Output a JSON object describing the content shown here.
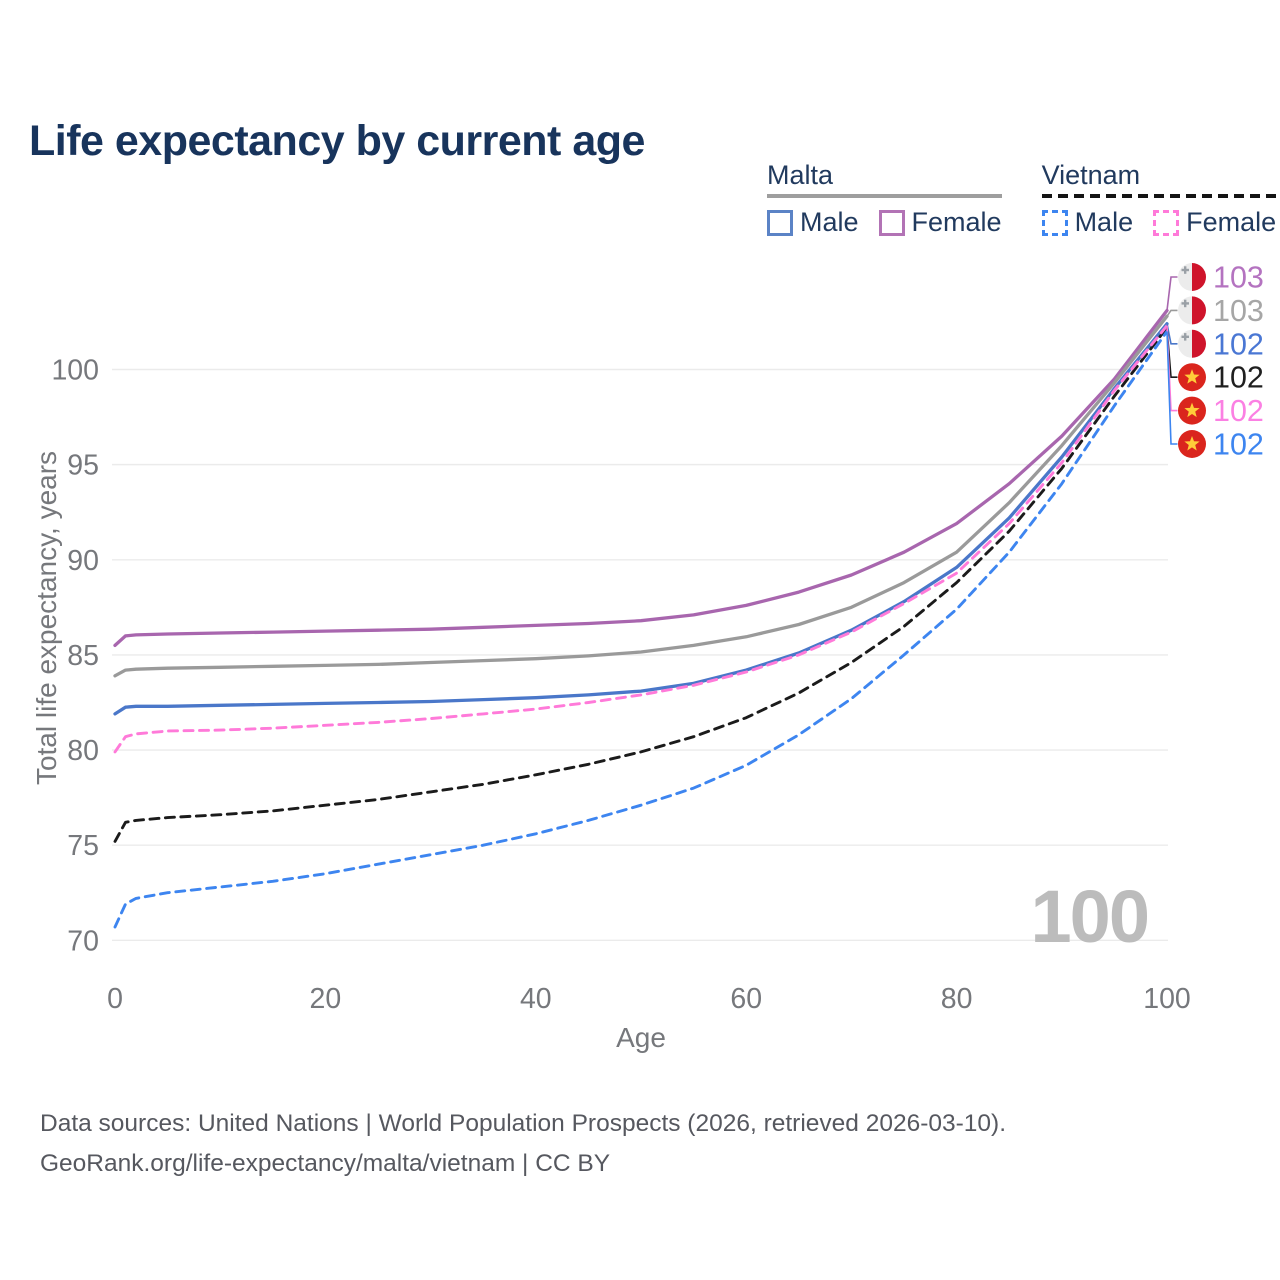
{
  "title": "Life expectancy by current age",
  "legend": {
    "groups": [
      {
        "title": "Malta",
        "style": "solid",
        "underline_color": "#9e9e9e",
        "items": [
          {
            "label": "Male",
            "color": "#5b83c6"
          },
          {
            "label": "Female",
            "color": "#b273b5"
          }
        ]
      },
      {
        "title": "Vietnam",
        "style": "dashed",
        "underline_color": "#141414",
        "items": [
          {
            "label": "Male",
            "color": "#3d85f0"
          },
          {
            "label": "Female",
            "color": "#ff7ad9"
          }
        ]
      }
    ]
  },
  "footer": {
    "line1": "Data sources: United Nations | World Population Prospects (2026, retrieved 2026-03-10).",
    "line2": "GeoRank.org/life-expectancy/malta/vietnam | CC BY"
  },
  "chart_data": {
    "type": "line",
    "title": "Life expectancy by current age",
    "xlabel": "Age",
    "ylabel": "Total life expectancy, years",
    "xlim": [
      0,
      100
    ],
    "ylim": [
      69.5,
      104
    ],
    "x_ticks": [
      0,
      20,
      40,
      60,
      80,
      100
    ],
    "y_ticks": [
      70,
      75,
      80,
      85,
      90,
      95,
      100
    ],
    "grid": true,
    "legend_position": "top-right",
    "watermark_age_counter": "100",
    "axis_color": "#76787c",
    "grid_color": "#ebebeb",
    "x": [
      0,
      1,
      2,
      5,
      10,
      15,
      20,
      25,
      30,
      35,
      40,
      45,
      50,
      55,
      60,
      65,
      70,
      75,
      80,
      85,
      90,
      95,
      100
    ],
    "series": [
      {
        "name": "malta-female",
        "country": "Malta",
        "sex": "Female",
        "color": "#a866ae",
        "dash": "solid",
        "flag": "malta",
        "end_label": "103",
        "end_label_color": "#b473c0",
        "values": [
          85.5,
          86.0,
          86.05,
          86.1,
          86.15,
          86.2,
          86.25,
          86.3,
          86.35,
          86.45,
          86.55,
          86.65,
          86.8,
          87.1,
          87.6,
          88.3,
          89.2,
          90.4,
          91.9,
          94.0,
          96.5,
          99.5,
          103.1
        ]
      },
      {
        "name": "malta-total",
        "country": "Malta",
        "sex": "All",
        "color": "#9a9a9a",
        "dash": "solid",
        "flag": "malta",
        "end_label": "103",
        "end_label_color": "#a6a6a6",
        "values": [
          83.9,
          84.2,
          84.25,
          84.3,
          84.35,
          84.4,
          84.45,
          84.5,
          84.6,
          84.7,
          84.8,
          84.95,
          85.15,
          85.5,
          85.95,
          86.6,
          87.5,
          88.8,
          90.4,
          93.0,
          96.0,
          99.3,
          102.8
        ]
      },
      {
        "name": "malta-male",
        "country": "Malta",
        "sex": "Male",
        "color": "#4a77c9",
        "dash": "solid",
        "flag": "malta",
        "end_label": "102",
        "end_label_color": "#4a77d4",
        "values": [
          81.9,
          82.25,
          82.3,
          82.3,
          82.35,
          82.4,
          82.45,
          82.5,
          82.55,
          82.65,
          82.75,
          82.9,
          83.1,
          83.5,
          84.2,
          85.1,
          86.3,
          87.8,
          89.6,
          92.2,
          95.4,
          99.0,
          102.4
        ]
      },
      {
        "name": "vietnam-total",
        "country": "Vietnam",
        "sex": "All",
        "color": "#1b1b1b",
        "dash": "dashed",
        "flag": "vietnam",
        "end_label": "102",
        "end_label_color": "#1f1f1f",
        "values": [
          75.2,
          76.2,
          76.3,
          76.45,
          76.6,
          76.8,
          77.1,
          77.4,
          77.8,
          78.2,
          78.7,
          79.25,
          79.9,
          80.7,
          81.7,
          83.0,
          84.6,
          86.5,
          88.8,
          91.5,
          94.8,
          98.6,
          102.2
        ]
      },
      {
        "name": "vietnam-female",
        "country": "Vietnam",
        "sex": "Female",
        "color": "#ff7ad9",
        "dash": "dashed",
        "flag": "vietnam",
        "end_label": "102",
        "end_label_color": "#fb80e3",
        "values": [
          79.9,
          80.7,
          80.85,
          81.0,
          81.05,
          81.15,
          81.3,
          81.45,
          81.65,
          81.9,
          82.15,
          82.5,
          82.9,
          83.4,
          84.1,
          85.0,
          86.2,
          87.7,
          89.3,
          91.9,
          95.1,
          98.9,
          102.3
        ]
      },
      {
        "name": "vietnam-male",
        "country": "Vietnam",
        "sex": "Male",
        "color": "#3d85f0",
        "dash": "dashed",
        "flag": "vietnam",
        "end_label": "102",
        "end_label_color": "#3d85f0",
        "values": [
          70.7,
          71.9,
          72.2,
          72.5,
          72.8,
          73.1,
          73.5,
          74.0,
          74.5,
          75.0,
          75.6,
          76.3,
          77.1,
          78.0,
          79.2,
          80.8,
          82.7,
          85.0,
          87.4,
          90.4,
          94.0,
          98.1,
          102.0
        ]
      }
    ]
  }
}
